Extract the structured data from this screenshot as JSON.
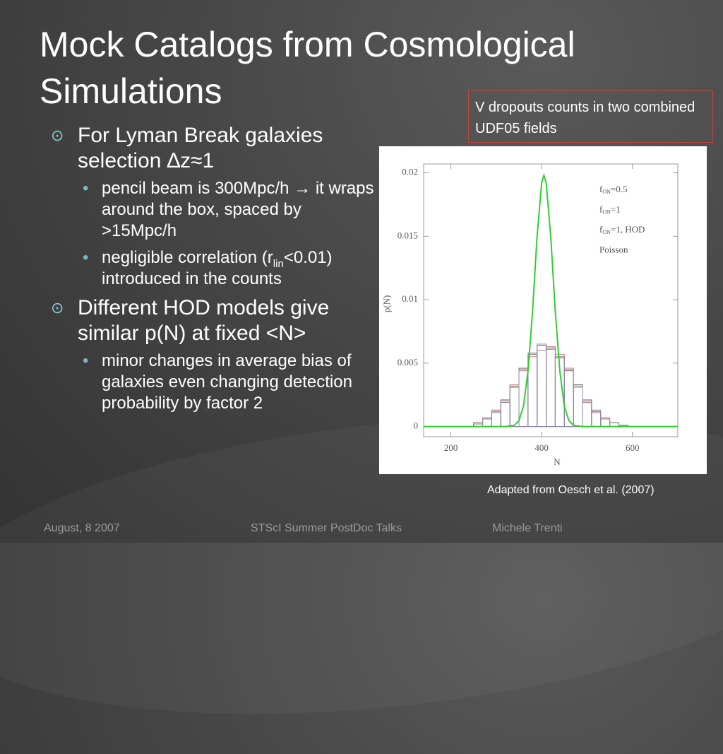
{
  "title": "Mock Catalogs from Cosmological Simulations",
  "bullets": [
    {
      "text": "For Lyman Break galaxies selection ∆z≈1",
      "sub": [
        {
          "text": "pencil beam is  300Mpc/h → it wraps around the box, spaced by >15Mpc/h"
        },
        {
          "before": "negligible correlation (r",
          "subscript": "lin",
          "after": "<0.01) introduced in the counts"
        }
      ]
    },
    {
      "text": "Different HOD models give similar p(N) at fixed <N>",
      "sub": [
        {
          "text": "minor changes in average bias of galaxies even changing detection probability by factor 2"
        }
      ]
    }
  ],
  "callout": "V dropouts counts in two combined UDF05 fields",
  "caption": "Adapted from Oesch et al.  (2007)",
  "footer": {
    "date": "August, 8 2007",
    "event": "STScI Summer PostDoc Talks",
    "author": "Michele Trenti"
  },
  "chart_data": {
    "type": "line",
    "x_label": "N",
    "y_label": "p(N)",
    "xlim": [
      140,
      700
    ],
    "ylim": [
      -0.0008,
      0.0207
    ],
    "xticks": [
      200,
      400,
      600
    ],
    "yticks": [
      0,
      0.005,
      0.01,
      0.015,
      0.02
    ],
    "series": [
      {
        "name": {
          "base": "f",
          "sub": "ON",
          "rest": "=0.5"
        },
        "color": "#666666",
        "bins": [
          250,
          270,
          290,
          310,
          330,
          350,
          370,
          390,
          410,
          430,
          450,
          470,
          490,
          510,
          530,
          550,
          570,
          590
        ],
        "values": [
          0.0003,
          0.0006,
          0.0012,
          0.0021,
          0.0031,
          0.0046,
          0.0057,
          0.0064,
          0.0061,
          0.0055,
          0.0044,
          0.0033,
          0.0021,
          0.0012,
          0.0006,
          0.0003,
          0.0001
        ]
      },
      {
        "name": {
          "base": "f",
          "sub": "ON",
          "rest": "=1"
        },
        "color": "#c97a7a",
        "bins": [
          250,
          270,
          290,
          310,
          330,
          350,
          370,
          390,
          410,
          430,
          450,
          470,
          490,
          510,
          530,
          550,
          570,
          590
        ],
        "values": [
          0.0003,
          0.0007,
          0.0013,
          0.002,
          0.0033,
          0.0044,
          0.0055,
          0.006,
          0.0063,
          0.0057,
          0.0046,
          0.0031,
          0.0019,
          0.0011,
          0.0006,
          0.0003,
          0.0001
        ]
      },
      {
        "name": {
          "base": "f",
          "sub": "ON",
          "rest": "=1,  HOD"
        },
        "color": "#8a8aaa",
        "bins": [
          250,
          270,
          290,
          310,
          330,
          350,
          370,
          390,
          410,
          430,
          450,
          470,
          490,
          510,
          530,
          550,
          570,
          590
        ],
        "values": [
          0.0002,
          0.0006,
          0.0011,
          0.0019,
          0.0032,
          0.0045,
          0.0058,
          0.0065,
          0.0062,
          0.0054,
          0.0045,
          0.0032,
          0.002,
          0.0013,
          0.0007,
          0.0003,
          0.0001
        ]
      },
      {
        "name": {
          "base": "Poisson"
        },
        "color": "#33cc33",
        "x": [
          140,
          320,
          340,
          350,
          360,
          370,
          380,
          390,
          400,
          405,
          410,
          420,
          430,
          440,
          450,
          460,
          470,
          490,
          700
        ],
        "values": [
          0,
          0,
          0.0001,
          0.00047,
          0.0016,
          0.0044,
          0.0091,
          0.015,
          0.0192,
          0.0198,
          0.0192,
          0.015,
          0.0091,
          0.0044,
          0.0016,
          0.00047,
          0.0001,
          0,
          0
        ]
      }
    ]
  }
}
